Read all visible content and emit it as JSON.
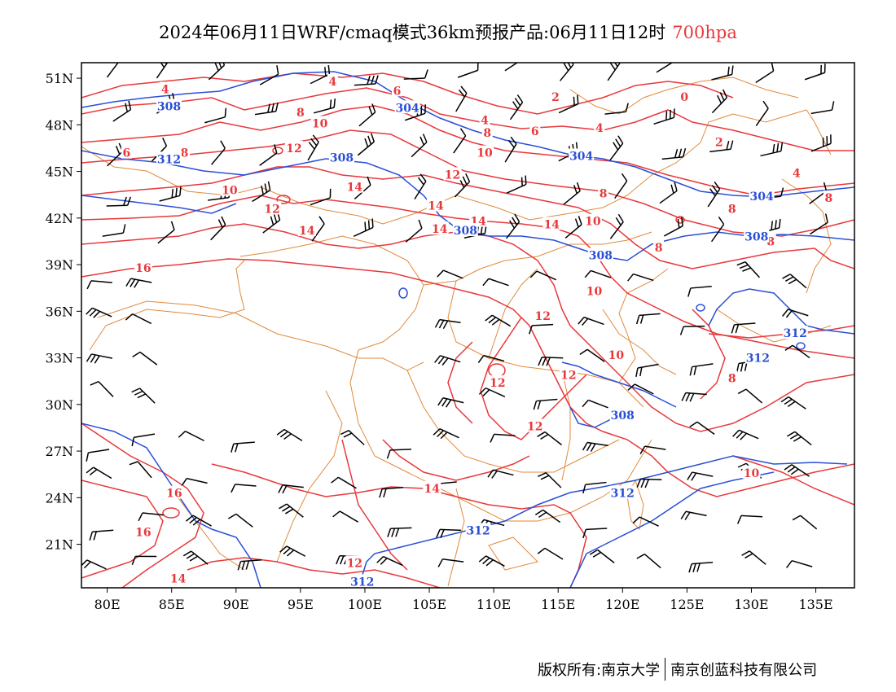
{
  "title": {
    "main": "2024年06月11日WRF/cmaq模式36km预报产品:06月11日12时",
    "level": "700hpa"
  },
  "axes": {
    "lat_labels": [
      "51N",
      "48N",
      "45N",
      "42N",
      "39N",
      "36N",
      "33N",
      "30N",
      "27N",
      "24N",
      "21N"
    ],
    "lat_values": [
      51,
      48,
      45,
      42,
      39,
      36,
      33,
      30,
      27,
      24,
      21
    ],
    "lon_labels": [
      "80E",
      "85E",
      "90E",
      "95E",
      "100E",
      "105E",
      "110E",
      "115E",
      "120E",
      "125E",
      "130E",
      "135E"
    ],
    "lon_values": [
      80,
      85,
      90,
      95,
      100,
      105,
      110,
      115,
      120,
      125,
      130,
      135
    ],
    "lon_range": [
      78,
      138
    ],
    "lat_range": [
      18.2,
      52
    ]
  },
  "colors": {
    "temperature": "#e8383b",
    "height": "#2a4fd6",
    "border": "#e08a3a",
    "wind": "#000000"
  },
  "temperature_labels": [
    {
      "text": "4",
      "lon": 84.5,
      "lat": 50.3
    },
    {
      "text": "4",
      "lon": 97.5,
      "lat": 50.8
    },
    {
      "text": "6",
      "lon": 102.5,
      "lat": 50.2
    },
    {
      "text": "8",
      "lon": 95,
      "lat": 48.8
    },
    {
      "text": "10",
      "lon": 96.5,
      "lat": 48.1
    },
    {
      "text": "6",
      "lon": 81.5,
      "lat": 46.2
    },
    {
      "text": "8",
      "lon": 86,
      "lat": 46.2
    },
    {
      "text": "12",
      "lon": 94.5,
      "lat": 46.5
    },
    {
      "text": "10",
      "lon": 89.5,
      "lat": 43.8
    },
    {
      "text": "12",
      "lon": 92.8,
      "lat": 42.6
    },
    {
      "text": "14",
      "lon": 95.5,
      "lat": 41.2
    },
    {
      "text": "14",
      "lon": 99.2,
      "lat": 44
    },
    {
      "text": "14",
      "lon": 105.5,
      "lat": 42.8
    },
    {
      "text": "12",
      "lon": 106.8,
      "lat": 44.8
    },
    {
      "text": "10",
      "lon": 109.3,
      "lat": 46.2
    },
    {
      "text": "8",
      "lon": 109.5,
      "lat": 47.5
    },
    {
      "text": "6",
      "lon": 113.2,
      "lat": 47.6
    },
    {
      "text": "4",
      "lon": 109.3,
      "lat": 48.3
    },
    {
      "text": "2",
      "lon": 114.8,
      "lat": 49.8
    },
    {
      "text": "0",
      "lon": 124.8,
      "lat": 49.8
    },
    {
      "text": "4",
      "lon": 118.2,
      "lat": 47.8
    },
    {
      "text": "2",
      "lon": 127.5,
      "lat": 46.9
    },
    {
      "text": "4",
      "lon": 133.5,
      "lat": 44.9
    },
    {
      "text": "8",
      "lon": 128.5,
      "lat": 42.6
    },
    {
      "text": "8",
      "lon": 136,
      "lat": 43.3
    },
    {
      "text": "8",
      "lon": 118.5,
      "lat": 43.6
    },
    {
      "text": "10",
      "lon": 117.7,
      "lat": 41.8
    },
    {
      "text": "14",
      "lon": 105.8,
      "lat": 41.3
    },
    {
      "text": "14",
      "lon": 108.8,
      "lat": 41.8
    },
    {
      "text": "14",
      "lon": 114.5,
      "lat": 41.6
    },
    {
      "text": "8",
      "lon": 122.8,
      "lat": 40.1
    },
    {
      "text": "8",
      "lon": 131.5,
      "lat": 40.5
    },
    {
      "text": "10",
      "lon": 117.8,
      "lat": 37.3
    },
    {
      "text": "12",
      "lon": 113.8,
      "lat": 35.7
    },
    {
      "text": "16",
      "lon": 82.8,
      "lat": 38.8
    },
    {
      "text": "10",
      "lon": 119.5,
      "lat": 33.2
    },
    {
      "text": "8",
      "lon": 128.5,
      "lat": 31.7
    },
    {
      "text": "12",
      "lon": 115.8,
      "lat": 31.9
    },
    {
      "text": "12",
      "lon": 110.3,
      "lat": 31.4
    },
    {
      "text": "12",
      "lon": 113.2,
      "lat": 28.6
    },
    {
      "text": "10",
      "lon": 130,
      "lat": 25.6
    },
    {
      "text": "14",
      "lon": 105.2,
      "lat": 24.6
    },
    {
      "text": "16",
      "lon": 85.2,
      "lat": 24.3
    },
    {
      "text": "16",
      "lon": 82.8,
      "lat": 21.8
    },
    {
      "text": "12",
      "lon": 99.2,
      "lat": 19.8
    },
    {
      "text": "14",
      "lon": 85.5,
      "lat": 18.8
    }
  ],
  "height_labels": [
    {
      "text": "308",
      "lon": 84.8,
      "lat": 49.2
    },
    {
      "text": "304",
      "lon": 103.3,
      "lat": 49.1
    },
    {
      "text": "308",
      "lon": 98.2,
      "lat": 45.9
    },
    {
      "text": "312",
      "lon": 84.8,
      "lat": 45.8
    },
    {
      "text": "304",
      "lon": 116.8,
      "lat": 46
    },
    {
      "text": "304",
      "lon": 130.8,
      "lat": 43.4
    },
    {
      "text": "308",
      "lon": 107.8,
      "lat": 41.2
    },
    {
      "text": "308",
      "lon": 118.3,
      "lat": 39.6
    },
    {
      "text": "308",
      "lon": 130.4,
      "lat": 40.8
    },
    {
      "text": "312",
      "lon": 133.4,
      "lat": 34.6
    },
    {
      "text": "312",
      "lon": 130.5,
      "lat": 33
    },
    {
      "text": "308",
      "lon": 120,
      "lat": 29.3
    },
    {
      "text": "312",
      "lon": 120,
      "lat": 24.3
    },
    {
      "text": "312",
      "lon": 108.8,
      "lat": 21.9
    },
    {
      "text": "312",
      "lon": 99.8,
      "lat": 18.6
    }
  ],
  "credit": {
    "owner": "版权所有:南京大学",
    "company": "南京创蓝科技有限公司"
  }
}
